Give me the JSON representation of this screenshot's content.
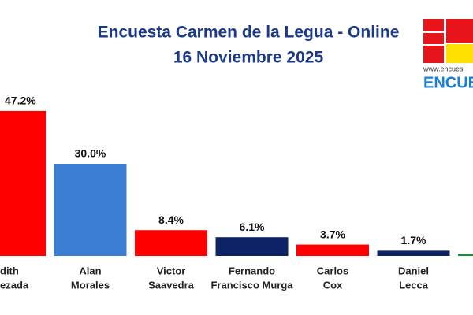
{
  "chart_data": {
    "type": "bar",
    "title": [
      "Encuesta Carmen de la Legua - Online",
      "16 Noviembre 2025"
    ],
    "categories": [
      [
        "dith",
        "ezada"
      ],
      [
        "Alan",
        "Morales"
      ],
      [
        "Victor",
        "Saavedra"
      ],
      [
        "Fernando",
        "Francisco Murga"
      ],
      [
        "Carlos",
        "Cox"
      ],
      [
        "Daniel",
        "Lecca"
      ],
      null
    ],
    "values": [
      47.2,
      30.0,
      8.4,
      6.1,
      3.7,
      1.7,
      0.7
    ],
    "value_labels": [
      "47.2%",
      "30.0%",
      "8.4%",
      "6.1%",
      "3.7%",
      "1.7%",
      null
    ],
    "colors": [
      "#ff0000",
      "#3b7dd0",
      "#ff0000",
      "#0d2366",
      "#ff0000",
      "#0d2366",
      "#1f8a3a"
    ],
    "ylim": [
      0,
      80
    ]
  },
  "logo": {
    "url": "www.encues",
    "name": "ENCUES"
  }
}
